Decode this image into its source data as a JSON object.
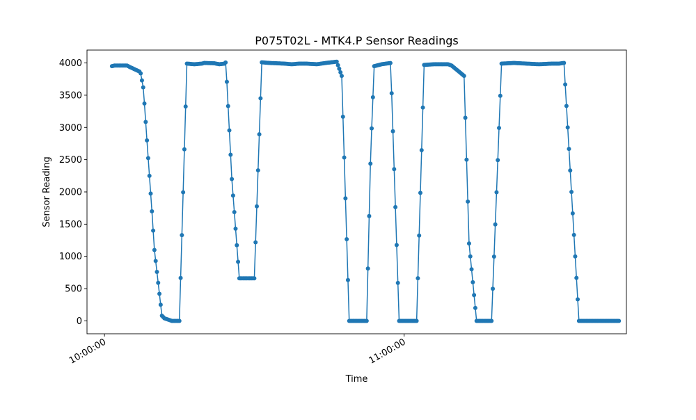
{
  "chart_data": {
    "type": "line",
    "title": "P075T02L - MTK4.P Sensor Readings",
    "xlabel": "Time",
    "ylabel": "Sensor Reading",
    "ylim": [
      -200,
      4200
    ],
    "xlim_minutes": [
      -3.5,
      104.5
    ],
    "grid": false,
    "x_tick_minutes": [
      0,
      60
    ],
    "x_tick_labels": [
      "10:00:00",
      "11:00:00"
    ],
    "y_ticks": [
      0,
      500,
      1000,
      1500,
      2000,
      2500,
      3000,
      3500,
      4000
    ],
    "y_tick_labels": [
      "0",
      "500",
      "1000",
      "1500",
      "2000",
      "2500",
      "3000",
      "3500",
      "4000"
    ],
    "colors": {
      "series": "#1f77b4",
      "axes": "#000000",
      "background": "#ffffff"
    },
    "series": [
      {
        "style": "line-with-markers",
        "anchors_minutes": [
          1.5,
          2.0,
          3.5,
          4.5,
          5.0,
          7.2,
          7.8,
          8.5,
          9.5,
          10.0,
          11.5,
          12.0,
          13.5,
          15.0,
          16.5,
          18.0,
          19.5,
          20.0,
          22.0,
          23.0,
          24.0,
          24.3,
          25.5,
          27.0,
          28.5,
          30.0,
          31.5,
          33.0,
          34.5,
          36.0,
          37.5,
          39.0,
          40.5,
          42.5,
          43.0,
          44.3,
          46.5,
          47.5,
          49.0,
          50.5,
          51.5,
          52.5,
          53.3,
          54.0,
          55.5,
          57.3,
          59.0,
          61.0,
          61.5,
          62.5,
          64.0,
          66.0,
          67.5,
          68.8,
          69.5,
          72.0,
          73.0,
          74.5,
          76.0,
          77.5,
          79.5,
          82.0,
          84.5,
          87.0,
          89.5,
          91.0,
          92.0,
          95.0,
          100.0,
          103.0
        ],
        "anchor_values": [
          3950,
          3960,
          3960,
          3960,
          3940,
          3860,
          3600,
          2800,
          1700,
          1100,
          80,
          40,
          0,
          0,
          3990,
          3980,
          3990,
          4000,
          3995,
          3980,
          3990,
          4010,
          2200,
          660,
          660,
          660,
          4010,
          4000,
          3995,
          3990,
          3980,
          3990,
          3990,
          3980,
          3985,
          4000,
          4020,
          3800,
          0,
          0,
          0,
          0,
          2600,
          3950,
          3980,
          4000,
          0,
          0,
          0,
          0,
          3970,
          3980,
          3980,
          3980,
          3960,
          3800,
          1200,
          0,
          0,
          0,
          3990,
          4000,
          3990,
          3980,
          3990,
          3990,
          4000,
          0,
          0,
          0
        ],
        "sample_step_minutes": 0.25
      }
    ]
  }
}
